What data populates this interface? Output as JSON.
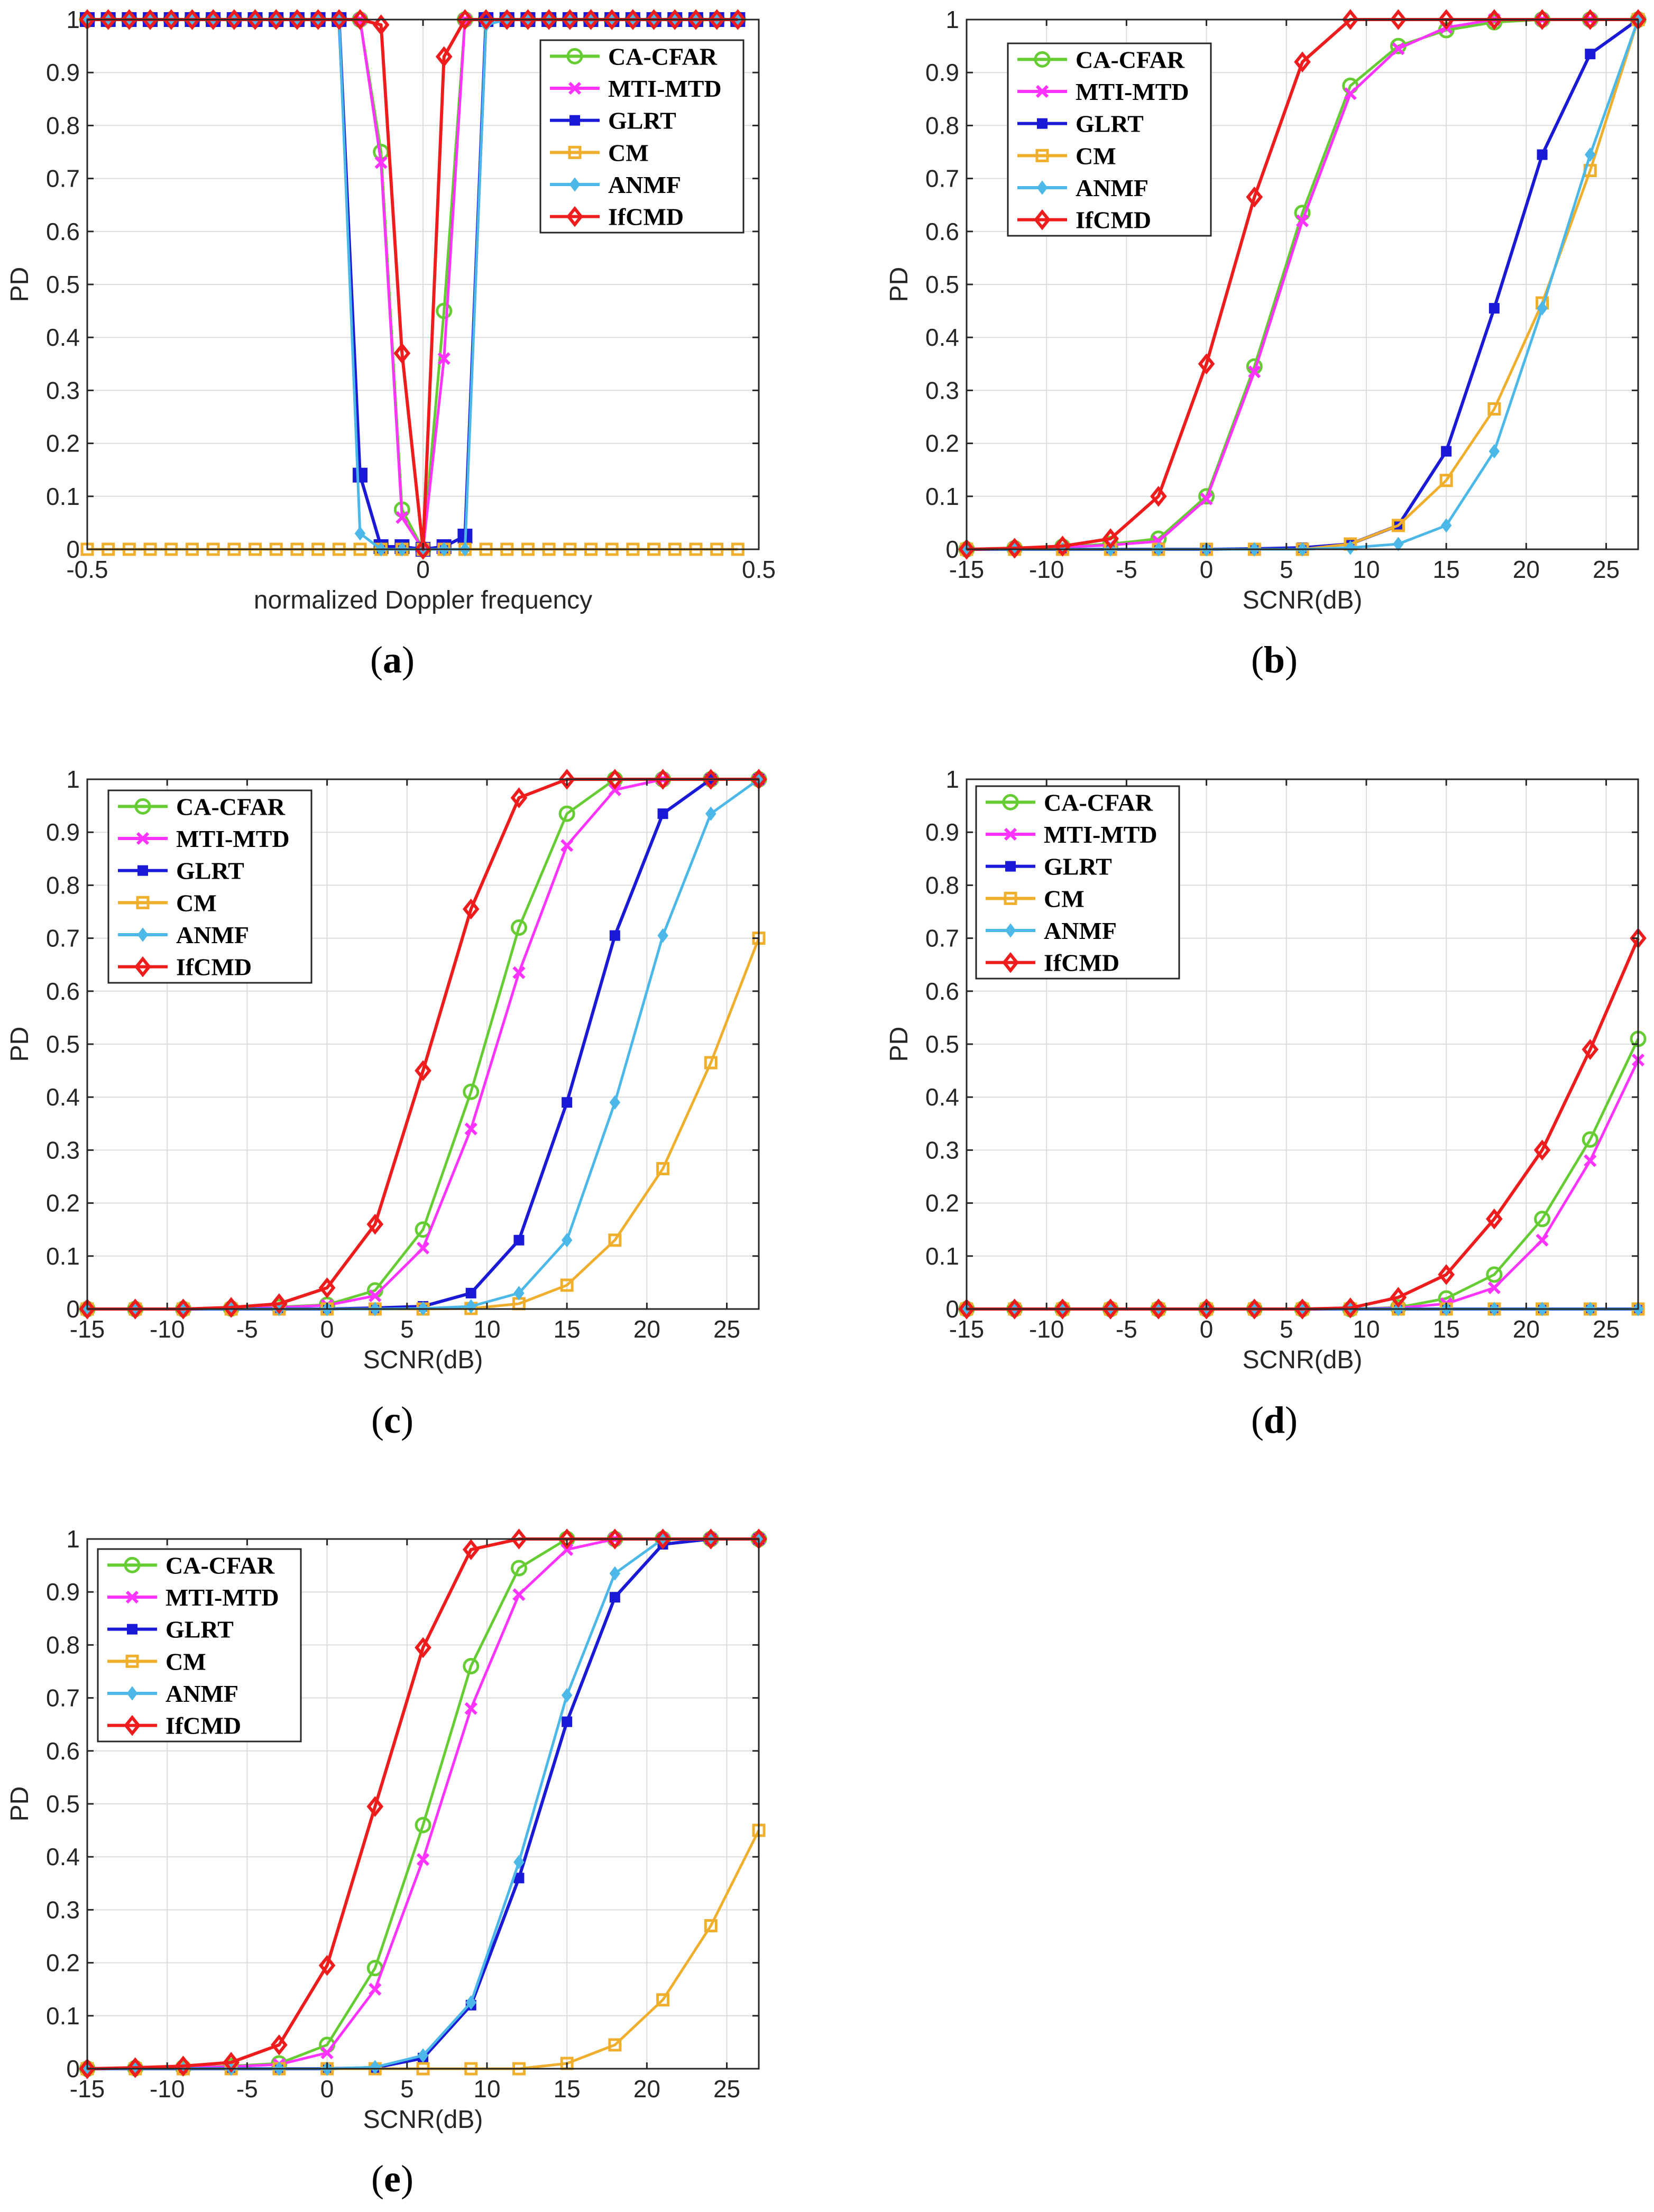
{
  "figure": {
    "subplots": [
      "a",
      "b",
      "c",
      "d",
      "e"
    ]
  },
  "colors": {
    "CA-CFAR": "#66cc33",
    "MTI-MTD": "#ff33ff",
    "GLRT": "#1a1ad6",
    "CM": "#efae2c",
    "ANMF": "#4cb8e8",
    "IfCMD": "#ee1c1c"
  },
  "markers": {
    "CA-CFAR": "circle",
    "MTI-MTD": "x",
    "GLRT": "square-filled",
    "CM": "square-open",
    "ANMF": "diamond-filled",
    "IfCMD": "diamond-open"
  },
  "chart_data": [
    {
      "id": "a",
      "type": "line",
      "caption_letter": "a",
      "title": "",
      "xlabel": "normalized Doppler frequency",
      "ylabel": "PD",
      "xlim": [
        -0.5,
        0.5
      ],
      "ylim": [
        0,
        1
      ],
      "xticks": [
        -0.5,
        0,
        0.5
      ],
      "xticklabels": [
        "-0.5",
        "0",
        "0.5"
      ],
      "yticks": [
        0,
        0.1,
        0.2,
        0.3,
        0.4,
        0.5,
        0.6,
        0.7,
        0.8,
        0.9,
        1
      ],
      "yticklabels": [
        "0",
        "0.1",
        "0.2",
        "0.3",
        "0.4",
        "0.5",
        "0.6",
        "0.7",
        "0.8",
        "0.9",
        "1"
      ],
      "grid": true,
      "legend_position": "top-right",
      "legend_labels": [
        "CA-CFAR",
        "MTI-MTD",
        "GLRT",
        "CM",
        "ANMF",
        "IfCMD"
      ],
      "x": [
        -0.5,
        -0.46875,
        -0.4375,
        -0.40625,
        -0.375,
        -0.34375,
        -0.3125,
        -0.28125,
        -0.25,
        -0.21875,
        -0.1875,
        -0.15625,
        -0.125,
        -0.09375,
        -0.0625,
        -0.03125,
        0,
        0.03125,
        0.0625,
        0.09375,
        0.125,
        0.15625,
        0.1875,
        0.21875,
        0.25,
        0.28125,
        0.3125,
        0.34375,
        0.375,
        0.40625,
        0.4375,
        0.46875
      ],
      "series": [
        {
          "name": "CA-CFAR",
          "values": [
            1,
            1,
            1,
            1,
            1,
            1,
            1,
            1,
            1,
            1,
            1,
            1,
            1,
            1,
            0.75,
            0.075,
            0,
            0.45,
            1,
            1,
            1,
            1,
            1,
            1,
            1,
            1,
            1,
            1,
            1,
            1,
            1,
            1
          ]
        },
        {
          "name": "MTI-MTD",
          "values": [
            1,
            1,
            1,
            1,
            1,
            1,
            1,
            1,
            1,
            1,
            1,
            1,
            1,
            1,
            0.73,
            0.06,
            0,
            0.36,
            1,
            1,
            1,
            1,
            1,
            1,
            1,
            1,
            1,
            1,
            1,
            1,
            1,
            1
          ]
        },
        {
          "name": "GLRT",
          "values": [
            1,
            1,
            1,
            1,
            1,
            1,
            1,
            1,
            1,
            1,
            1,
            1,
            1,
            0.14,
            0.005,
            0.005,
            0,
            0.005,
            0.025,
            1,
            1,
            1,
            1,
            1,
            1,
            1,
            1,
            1,
            1,
            1,
            1,
            1
          ]
        },
        {
          "name": "CM",
          "values": [
            0,
            0,
            0,
            0,
            0,
            0,
            0,
            0,
            0,
            0,
            0,
            0,
            0,
            0,
            0,
            0,
            0,
            0,
            0,
            0,
            0,
            0,
            0,
            0,
            0,
            0,
            0,
            0,
            0,
            0,
            0,
            0
          ]
        },
        {
          "name": "ANMF",
          "values": [
            1,
            1,
            1,
            1,
            1,
            1,
            1,
            1,
            1,
            1,
            1,
            1,
            1,
            0.03,
            0,
            0,
            0,
            0,
            0,
            0.99,
            1,
            1,
            1,
            1,
            1,
            1,
            1,
            1,
            1,
            1,
            1,
            1
          ]
        },
        {
          "name": "IfCMD",
          "values": [
            1,
            1,
            1,
            1,
            1,
            1,
            1,
            1,
            1,
            1,
            1,
            1,
            1,
            1,
            0.99,
            0.37,
            0,
            0.93,
            1,
            1,
            1,
            1,
            1,
            1,
            1,
            1,
            1,
            1,
            1,
            1,
            1,
            1
          ]
        }
      ]
    },
    {
      "id": "b",
      "type": "line",
      "caption_letter": "b",
      "title": "",
      "xlabel": "SCNR(dB)",
      "ylabel": "PD",
      "xlim": [
        -15,
        27
      ],
      "ylim": [
        0,
        1
      ],
      "xticks": [
        -15,
        -10,
        -5,
        0,
        5,
        10,
        15,
        20,
        25
      ],
      "xticklabels": [
        "-15",
        "-10",
        "-5",
        "0",
        "5",
        "10",
        "15",
        "20",
        "25"
      ],
      "yticks": [
        0,
        0.1,
        0.2,
        0.3,
        0.4,
        0.5,
        0.6,
        0.7,
        0.8,
        0.9,
        1
      ],
      "yticklabels": [
        "0",
        "0.1",
        "0.2",
        "0.3",
        "0.4",
        "0.5",
        "0.6",
        "0.7",
        "0.8",
        "0.9",
        "1"
      ],
      "grid": true,
      "legend_position": "top-left",
      "legend_labels": [
        "CA-CFAR",
        "MTI-MTD",
        "GLRT",
        "CM",
        "ANMF",
        "IfCMD"
      ],
      "x": [
        -15,
        -12,
        -9,
        -6,
        -3,
        0,
        3,
        6,
        9,
        12,
        15,
        18,
        21,
        24,
        27
      ],
      "series": [
        {
          "name": "CA-CFAR",
          "values": [
            0,
            0.002,
            0.005,
            0.01,
            0.02,
            0.1,
            0.345,
            0.635,
            0.875,
            0.95,
            0.98,
            0.995,
            1,
            1,
            1
          ]
        },
        {
          "name": "MTI-MTD",
          "values": [
            0,
            0.002,
            0.004,
            0.008,
            0.015,
            0.095,
            0.335,
            0.62,
            0.86,
            0.945,
            0.985,
            1,
            1,
            1,
            1
          ]
        },
        {
          "name": "GLRT",
          "values": [
            0,
            0,
            0,
            0,
            0,
            0,
            0.001,
            0.003,
            0.01,
            0.045,
            0.185,
            0.455,
            0.745,
            0.935,
            1
          ]
        },
        {
          "name": "CM",
          "values": [
            0,
            0,
            0,
            0,
            0,
            0,
            0,
            0,
            0.01,
            0.045,
            0.13,
            0.265,
            0.465,
            0.715,
            1
          ]
        },
        {
          "name": "ANMF",
          "values": [
            0,
            0,
            0,
            0,
            0,
            0,
            0,
            0,
            0.003,
            0.01,
            0.045,
            0.185,
            0.455,
            0.745,
            1
          ]
        },
        {
          "name": "IfCMD",
          "values": [
            0,
            0.002,
            0.006,
            0.02,
            0.1,
            0.35,
            0.665,
            0.92,
            1,
            1,
            1,
            1,
            1,
            1,
            1
          ]
        }
      ]
    },
    {
      "id": "c",
      "type": "line",
      "caption_letter": "c",
      "title": "",
      "xlabel": "SCNR(dB)",
      "ylabel": "PD",
      "xlim": [
        -15,
        27
      ],
      "ylim": [
        0,
        1
      ],
      "xticks": [
        -15,
        -10,
        -5,
        0,
        5,
        10,
        15,
        20,
        25
      ],
      "xticklabels": [
        "-15",
        "-10",
        "-5",
        "0",
        "5",
        "10",
        "15",
        "20",
        "25"
      ],
      "yticks": [
        0,
        0.1,
        0.2,
        0.3,
        0.4,
        0.5,
        0.6,
        0.7,
        0.8,
        0.9,
        1
      ],
      "yticklabels": [
        "0",
        "0.1",
        "0.2",
        "0.3",
        "0.4",
        "0.5",
        "0.6",
        "0.7",
        "0.8",
        "0.9",
        "1"
      ],
      "grid": true,
      "legend_position": "top-left",
      "legend_labels": [
        "CA-CFAR",
        "MTI-MTD",
        "GLRT",
        "CM",
        "ANMF",
        "IfCMD"
      ],
      "x": [
        -15,
        -12,
        -9,
        -6,
        -3,
        0,
        3,
        6,
        9,
        12,
        15,
        18,
        21,
        24,
        27
      ],
      "series": [
        {
          "name": "CA-CFAR",
          "values": [
            0,
            0,
            0,
            0.001,
            0.004,
            0.008,
            0.035,
            0.15,
            0.41,
            0.72,
            0.935,
            1,
            1,
            1,
            1
          ]
        },
        {
          "name": "MTI-MTD",
          "values": [
            0,
            0,
            0,
            0.001,
            0.003,
            0.007,
            0.025,
            0.115,
            0.34,
            0.635,
            0.875,
            0.98,
            1,
            1,
            1
          ]
        },
        {
          "name": "GLRT",
          "values": [
            0,
            0,
            0,
            0,
            0,
            0,
            0.002,
            0.005,
            0.03,
            0.13,
            0.39,
            0.705,
            0.935,
            1,
            1
          ]
        },
        {
          "name": "CM",
          "values": [
            0,
            0,
            0,
            0,
            0,
            0,
            0,
            0,
            0.001,
            0.01,
            0.045,
            0.13,
            0.265,
            0.465,
            0.7
          ]
        },
        {
          "name": "ANMF",
          "values": [
            0,
            0,
            0,
            0,
            0,
            0,
            0,
            0.001,
            0.005,
            0.03,
            0.13,
            0.39,
            0.705,
            0.935,
            1
          ]
        },
        {
          "name": "IfCMD",
          "values": [
            0,
            0,
            0,
            0.003,
            0.01,
            0.04,
            0.16,
            0.45,
            0.755,
            0.965,
            1,
            1,
            1,
            1,
            1
          ]
        }
      ]
    },
    {
      "id": "d",
      "type": "line",
      "caption_letter": "d",
      "title": "",
      "xlabel": "SCNR(dB)",
      "ylabel": "PD",
      "xlim": [
        -15,
        27
      ],
      "ylim": [
        0,
        1
      ],
      "xticks": [
        -15,
        -10,
        -5,
        0,
        5,
        10,
        15,
        20,
        25
      ],
      "xticklabels": [
        "-15",
        "-10",
        "-5",
        "0",
        "5",
        "10",
        "15",
        "20",
        "25"
      ],
      "yticks": [
        0,
        0.1,
        0.2,
        0.3,
        0.4,
        0.5,
        0.6,
        0.7,
        0.8,
        0.9,
        1
      ],
      "yticklabels": [
        "0",
        "0.1",
        "0.2",
        "0.3",
        "0.4",
        "0.5",
        "0.6",
        "0.7",
        "0.8",
        "0.9",
        "1"
      ],
      "grid": true,
      "legend_position": "top-left",
      "legend_labels": [
        "CA-CFAR",
        "MTI-MTD",
        "GLRT",
        "CM",
        "ANMF",
        "IfCMD"
      ],
      "x": [
        -15,
        -12,
        -9,
        -6,
        -3,
        0,
        3,
        6,
        9,
        12,
        15,
        18,
        21,
        24,
        27
      ],
      "series": [
        {
          "name": "CA-CFAR",
          "values": [
            0,
            0,
            0,
            0,
            0,
            0,
            0,
            0,
            0,
            0.003,
            0.02,
            0.065,
            0.17,
            0.32,
            0.51
          ]
        },
        {
          "name": "MTI-MTD",
          "values": [
            0,
            0,
            0,
            0,
            0,
            0,
            0,
            0,
            0,
            0.002,
            0.01,
            0.04,
            0.13,
            0.28,
            0.47
          ]
        },
        {
          "name": "GLRT",
          "values": [
            0,
            0,
            0,
            0,
            0,
            0,
            0,
            0,
            0,
            0,
            0,
            0,
            0,
            0,
            0
          ]
        },
        {
          "name": "CM",
          "values": [
            0,
            0,
            0,
            0,
            0,
            0,
            0,
            0,
            0,
            0,
            0,
            0,
            0,
            0,
            0
          ]
        },
        {
          "name": "ANMF",
          "values": [
            0,
            0,
            0,
            0,
            0,
            0,
            0,
            0,
            0,
            0,
            0,
            0,
            0,
            0,
            0
          ]
        },
        {
          "name": "IfCMD",
          "values": [
            0,
            0,
            0,
            0,
            0,
            0,
            0,
            0,
            0.002,
            0.022,
            0.065,
            0.17,
            0.3,
            0.49,
            0.7
          ]
        }
      ]
    },
    {
      "id": "e",
      "type": "line",
      "caption_letter": "e",
      "title": "",
      "xlabel": "SCNR(dB)",
      "ylabel": "PD",
      "xlim": [
        -15,
        27
      ],
      "ylim": [
        0,
        1
      ],
      "xticks": [
        -15,
        -10,
        -5,
        0,
        5,
        10,
        15,
        20,
        25
      ],
      "xticklabels": [
        "-15",
        "-10",
        "-5",
        "0",
        "5",
        "10",
        "15",
        "20",
        "25"
      ],
      "yticks": [
        0,
        0.1,
        0.2,
        0.3,
        0.4,
        0.5,
        0.6,
        0.7,
        0.8,
        0.9,
        1
      ],
      "yticklabels": [
        "0",
        "0.1",
        "0.2",
        "0.3",
        "0.4",
        "0.5",
        "0.6",
        "0.7",
        "0.8",
        "0.9",
        "1"
      ],
      "grid": true,
      "legend_position": "top-left",
      "legend_labels": [
        "CA-CFAR",
        "MTI-MTD",
        "GLRT",
        "CM",
        "ANMF",
        "IfCMD"
      ],
      "x": [
        -15,
        -12,
        -9,
        -6,
        -3,
        0,
        3,
        6,
        9,
        12,
        15,
        18,
        21,
        24,
        27
      ],
      "series": [
        {
          "name": "CA-CFAR",
          "values": [
            0,
            0.001,
            0.002,
            0.005,
            0.01,
            0.045,
            0.19,
            0.46,
            0.76,
            0.945,
            1,
            1,
            1,
            1,
            1
          ]
        },
        {
          "name": "MTI-MTD",
          "values": [
            0,
            0.001,
            0.002,
            0.004,
            0.008,
            0.03,
            0.15,
            0.395,
            0.68,
            0.895,
            0.98,
            1,
            1,
            1,
            1
          ]
        },
        {
          "name": "GLRT",
          "values": [
            0,
            0,
            0,
            0,
            0,
            0,
            0.002,
            0.02,
            0.12,
            0.36,
            0.655,
            0.89,
            0.99,
            1,
            1
          ]
        },
        {
          "name": "CM",
          "values": [
            0,
            0,
            0,
            0,
            0,
            0,
            0,
            0,
            0,
            0,
            0.01,
            0.045,
            0.13,
            0.27,
            0.45
          ]
        },
        {
          "name": "ANMF",
          "values": [
            0,
            0,
            0,
            0,
            0,
            0,
            0.003,
            0.025,
            0.125,
            0.39,
            0.705,
            0.935,
            1,
            1,
            1
          ]
        },
        {
          "name": "IfCMD",
          "values": [
            0,
            0.002,
            0.005,
            0.012,
            0.045,
            0.195,
            0.495,
            0.795,
            0.98,
            1,
            1,
            1,
            1,
            1,
            1
          ]
        }
      ]
    }
  ]
}
